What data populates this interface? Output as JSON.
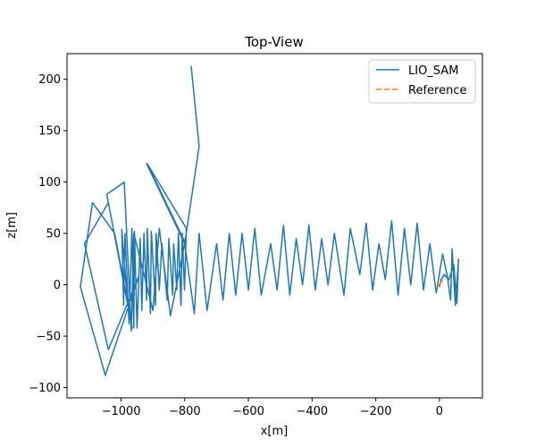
{
  "chart_data": {
    "type": "line",
    "title": "Top-View",
    "xlabel": "x[m]",
    "ylabel": "z[m]",
    "xlim": [
      -1170,
      135
    ],
    "ylim": [
      -110,
      225
    ],
    "grid": false,
    "legend_position": "top-right",
    "x_ticks": [
      -1000,
      -800,
      -600,
      -400,
      -200,
      0
    ],
    "x_tick_labels": [
      "−1000",
      "−800",
      "−600",
      "−400",
      "−200",
      "0"
    ],
    "y_ticks": [
      -100,
      -50,
      0,
      50,
      100,
      150,
      200
    ],
    "y_tick_labels": [
      "−100",
      "−50",
      "0",
      "50",
      "100",
      "150",
      "200"
    ],
    "series": [
      {
        "name": "LIO_SAM",
        "color": "#1f77b4",
        "dash": "solid",
        "points": [
          [
            -780,
            213
          ],
          [
            -755,
            135
          ],
          [
            -800,
            40
          ],
          [
            -920,
            118
          ],
          [
            -800,
            42
          ],
          [
            -918,
            118
          ],
          [
            -795,
            55
          ],
          [
            -801,
            -5
          ],
          [
            -808,
            50
          ],
          [
            -812,
            -20
          ],
          [
            -820,
            50
          ],
          [
            -825,
            -5
          ],
          [
            -835,
            40
          ],
          [
            -838,
            -10
          ],
          [
            -850,
            45
          ],
          [
            -855,
            -15
          ],
          [
            -872,
            40
          ],
          [
            -880,
            -5
          ],
          [
            -890,
            50
          ],
          [
            -892,
            -20
          ],
          [
            -905,
            52
          ],
          [
            -908,
            -28
          ],
          [
            -918,
            55
          ],
          [
            -920,
            -15
          ],
          [
            -928,
            50
          ],
          [
            -935,
            -25
          ],
          [
            -940,
            45
          ],
          [
            -950,
            -42
          ],
          [
            -958,
            52
          ],
          [
            -960,
            -42
          ],
          [
            -966,
            55
          ],
          [
            -975,
            -38
          ],
          [
            -988,
            50
          ],
          [
            -992,
            -20
          ],
          [
            -998,
            54
          ],
          [
            -980,
            -18
          ],
          [
            -1040,
            80
          ],
          [
            -1115,
            40
          ],
          [
            -1040,
            -63
          ],
          [
            -945,
            8
          ],
          [
            -1050,
            -88
          ],
          [
            -1128,
            -2
          ],
          [
            -1090,
            80
          ],
          [
            -1020,
            50
          ],
          [
            -965,
            -42
          ],
          [
            -1045,
            88
          ],
          [
            -990,
            100
          ],
          [
            -968,
            -45
          ],
          [
            -960,
            50
          ],
          [
            -900,
            -25
          ],
          [
            -880,
            55
          ],
          [
            -845,
            -30
          ],
          [
            -800,
            40
          ],
          [
            -770,
            -28
          ],
          [
            -755,
            50
          ],
          [
            -730,
            -25
          ],
          [
            -700,
            40
          ],
          [
            -680,
            -15
          ],
          [
            -660,
            50
          ],
          [
            -640,
            -10
          ],
          [
            -620,
            50
          ],
          [
            -600,
            -5
          ],
          [
            -580,
            55
          ],
          [
            -560,
            -10
          ],
          [
            -530,
            40
          ],
          [
            -510,
            -5
          ],
          [
            -490,
            58
          ],
          [
            -470,
            -10
          ],
          [
            -450,
            45
          ],
          [
            -430,
            0
          ],
          [
            -410,
            58
          ],
          [
            -390,
            -5
          ],
          [
            -370,
            45
          ],
          [
            -350,
            0
          ],
          [
            -330,
            50
          ],
          [
            -300,
            -10
          ],
          [
            -280,
            55
          ],
          [
            -250,
            10
          ],
          [
            -230,
            60
          ],
          [
            -210,
            -5
          ],
          [
            -190,
            40
          ],
          [
            -170,
            5
          ],
          [
            -150,
            62
          ],
          [
            -130,
            -10
          ],
          [
            -110,
            55
          ],
          [
            -90,
            0
          ],
          [
            -70,
            60
          ],
          [
            -50,
            -5
          ],
          [
            -30,
            40
          ],
          [
            -10,
            -8
          ],
          [
            10,
            30
          ],
          [
            25,
            8
          ],
          [
            35,
            -15
          ],
          [
            40,
            35
          ],
          [
            50,
            -20
          ],
          [
            60,
            25
          ],
          [
            55,
            -18
          ],
          [
            45,
            20
          ],
          [
            30,
            5
          ],
          [
            15,
            10
          ],
          [
            5,
            5
          ],
          [
            0,
            -2
          ]
        ]
      },
      {
        "name": "Reference",
        "color": "#ff7f0e",
        "dash": "dashed",
        "points": [
          [
            -5,
            2
          ],
          [
            0,
            -2
          ],
          [
            3,
            3
          ],
          [
            7,
            1
          ],
          [
            10,
            5
          ]
        ]
      }
    ]
  }
}
